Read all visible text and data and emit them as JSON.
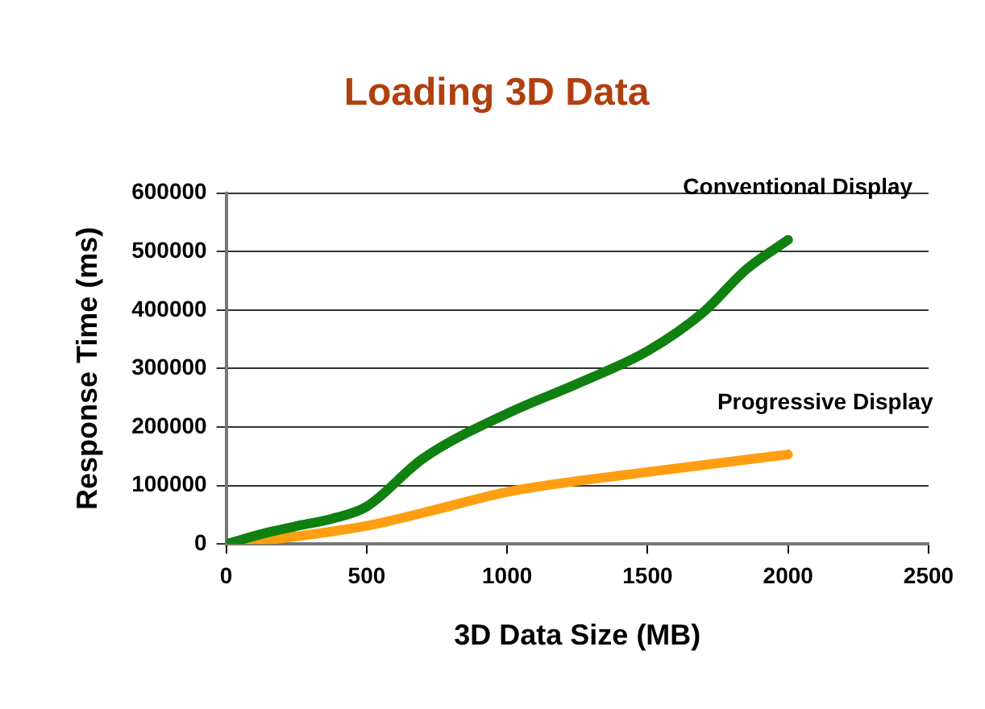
{
  "chart_data": {
    "type": "line",
    "title": "Loading 3D Data",
    "xlabel": "3D Data Size (MB)",
    "ylabel": "Response Time (ms)",
    "xlim": [
      0,
      2500
    ],
    "xticks": [
      0,
      500,
      1000,
      1500,
      2000,
      2500
    ],
    "ylim": [
      0,
      600000
    ],
    "yticks": [
      0,
      100000,
      200000,
      300000,
      400000,
      500000,
      600000
    ],
    "grid": "y",
    "legend": false,
    "marker": "none",
    "line_style": "solid",
    "series": [
      {
        "name": "Conventional Display",
        "color": "#108010",
        "x": [
          0,
          150,
          275,
          375,
          500,
          700,
          1000,
          1250,
          1500,
          1700,
          1850,
          2000
        ],
        "values": [
          0,
          20000,
          33000,
          43000,
          64000,
          146000,
          223000,
          274000,
          330000,
          397000,
          469000,
          520000
        ]
      },
      {
        "name": "Progressive Display",
        "color": "#ff9e10",
        "x": [
          0,
          150,
          500,
          740,
          1000,
          1500,
          2000
        ],
        "values": [
          0,
          7000,
          31000,
          58000,
          89000,
          123000,
          153000
        ]
      }
    ]
  }
}
